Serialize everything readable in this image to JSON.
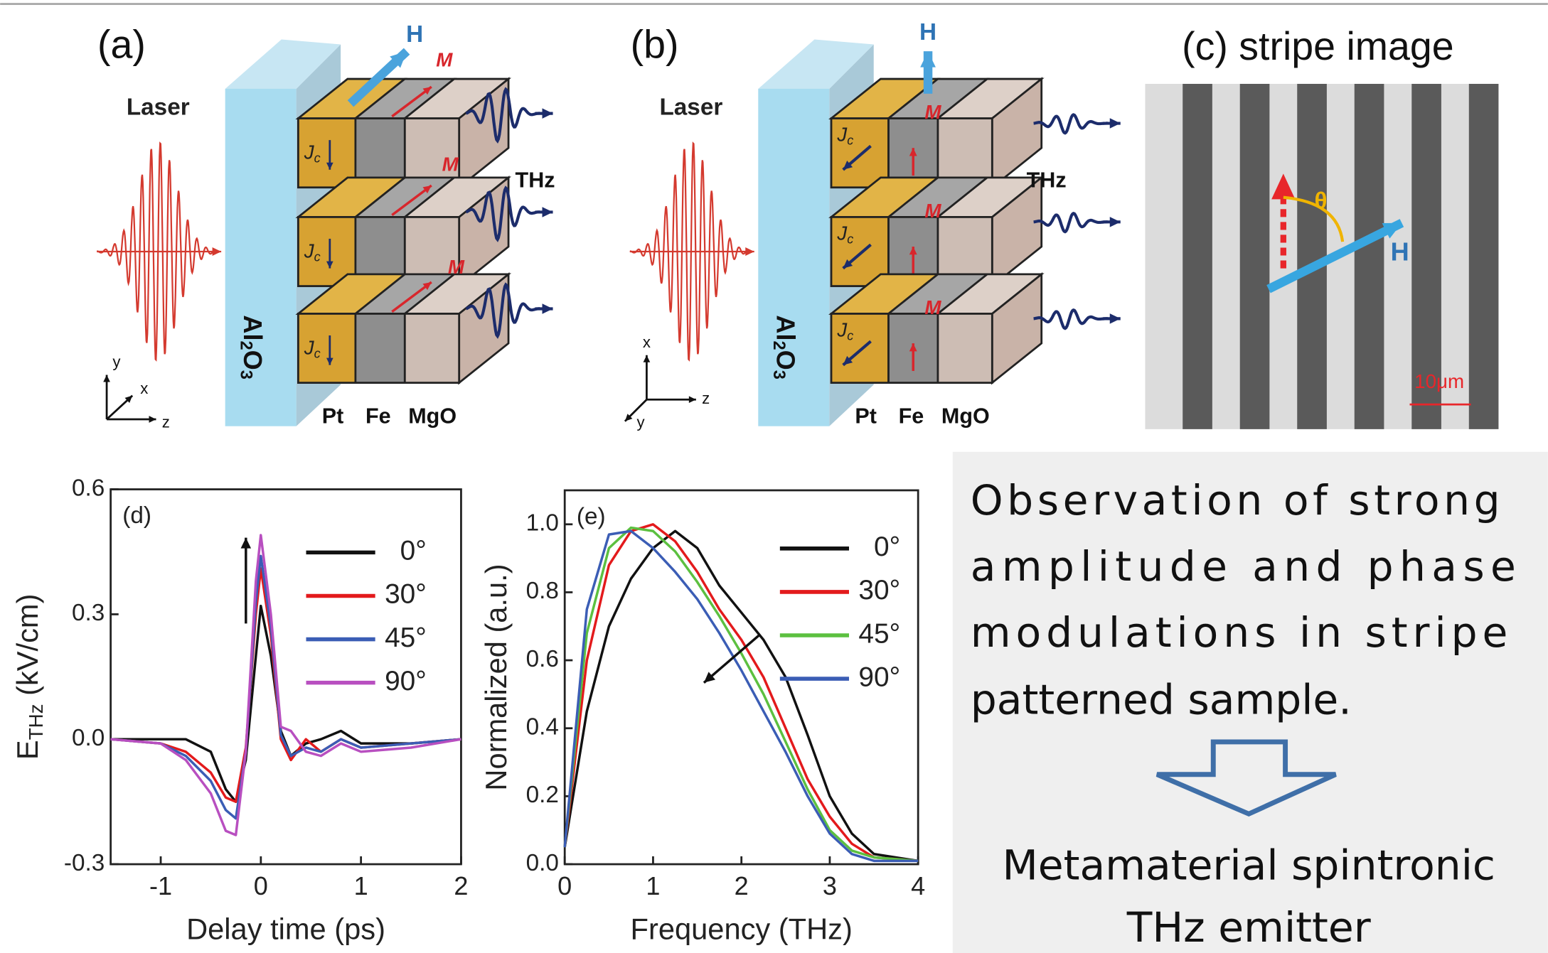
{
  "panel_a": {
    "label": "(a)",
    "laser": "Laser",
    "field": "H",
    "magnetization": "M",
    "thz": "THz",
    "substrate": "Al",
    "substrate_sub1": "2",
    "substrate_o": "O",
    "substrate_sub2": "3",
    "current": "J",
    "current_sub": "c",
    "layers": [
      "Pt",
      "Fe",
      "MgO"
    ],
    "axes": [
      "y",
      "x",
      "z"
    ]
  },
  "panel_b": {
    "label": "(b)",
    "laser": "Laser",
    "field": "H",
    "magnetization": "M",
    "thz": "THz",
    "substrate": "Al",
    "substrate_sub1": "2",
    "substrate_o": "O",
    "substrate_sub2": "3",
    "current": "J",
    "current_sub": "c",
    "layers": [
      "Pt",
      "Fe",
      "MgO"
    ],
    "axes": [
      "x",
      "y",
      "z"
    ]
  },
  "panel_c": {
    "title": "(c) stripe image",
    "angle": "θ",
    "field": "H",
    "scale": "10μm"
  },
  "chart_data": [
    {
      "type": "line",
      "panel_label": "(d)",
      "x_label": "Delay time (ps)",
      "y_label": "E",
      "y_label_sub": "THz",
      "y_label_unit": " (kV/cm)",
      "x": [
        -1.5,
        -1,
        -0.75,
        -0.5,
        -0.35,
        -0.25,
        -0.15,
        -0.05,
        0,
        0.1,
        0.2,
        0.3,
        0.45,
        0.6,
        0.8,
        1,
        1.5,
        2
      ],
      "xlim": [
        -1.5,
        2
      ],
      "xticks": [
        -1,
        0,
        1,
        2
      ],
      "ylim": [
        -0.3,
        0.6
      ],
      "yticks": [
        -0.3,
        {
          "value": 0,
          "label": "0.0"
        },
        0.3,
        0.6
      ],
      "series": [
        {
          "name": "0°",
          "color": "#111111",
          "values": [
            0,
            0,
            0,
            -0.03,
            -0.12,
            -0.15,
            -0.05,
            0.2,
            0.32,
            0.2,
            0.02,
            -0.04,
            -0.01,
            0,
            0.02,
            -0.01,
            -0.01,
            0
          ]
        },
        {
          "name": "30°",
          "color": "#e31a1c",
          "values": [
            0,
            -0.01,
            -0.03,
            -0.08,
            -0.14,
            -0.15,
            -0.02,
            0.3,
            0.41,
            0.25,
            0,
            -0.05,
            0,
            -0.03,
            0,
            -0.02,
            -0.01,
            0
          ]
        },
        {
          "name": "45°",
          "color": "#3b5db5",
          "values": [
            0,
            -0.01,
            -0.04,
            -0.1,
            -0.17,
            -0.19,
            -0.03,
            0.33,
            0.44,
            0.27,
            0.01,
            -0.04,
            -0.02,
            -0.03,
            0,
            -0.02,
            -0.01,
            0
          ]
        },
        {
          "name": "90°",
          "color": "#b84fc0",
          "values": [
            0,
            -0.01,
            -0.05,
            -0.13,
            -0.22,
            -0.23,
            -0.03,
            0.38,
            0.49,
            0.3,
            0.03,
            0.02,
            -0.03,
            -0.04,
            -0.01,
            -0.03,
            -0.02,
            0
          ]
        }
      ]
    },
    {
      "type": "line",
      "panel_label": "(e)",
      "x_label": "Frequency (THz)",
      "y_label": "Normalized (a.u.)",
      "x": [
        0,
        0.25,
        0.5,
        0.75,
        1,
        1.25,
        1.5,
        1.75,
        2,
        2.25,
        2.5,
        2.75,
        3,
        3.25,
        3.5,
        4
      ],
      "xlim": [
        0,
        4
      ],
      "xticks": [
        0,
        1,
        2,
        3,
        4
      ],
      "ylim": [
        0,
        1.1
      ],
      "yticks": [
        {
          "value": 0,
          "label": "0.0"
        },
        0.2,
        0.4,
        0.6,
        0.8,
        {
          "value": 1,
          "label": "1.0"
        }
      ],
      "series": [
        {
          "name": "0°",
          "color": "#111111",
          "values": [
            0.05,
            0.45,
            0.7,
            0.84,
            0.93,
            0.98,
            0.93,
            0.82,
            0.74,
            0.66,
            0.55,
            0.38,
            0.2,
            0.09,
            0.03,
            0.01
          ]
        },
        {
          "name": "30°",
          "color": "#e31a1c",
          "values": [
            0.05,
            0.6,
            0.88,
            0.98,
            1.0,
            0.95,
            0.86,
            0.75,
            0.66,
            0.55,
            0.4,
            0.25,
            0.14,
            0.06,
            0.02,
            0.01
          ]
        },
        {
          "name": "45°",
          "color": "#5cc040",
          "values": [
            0.05,
            0.68,
            0.93,
            0.99,
            0.98,
            0.92,
            0.83,
            0.73,
            0.62,
            0.5,
            0.36,
            0.22,
            0.1,
            0.04,
            0.02,
            0.01
          ]
        },
        {
          "name": "90°",
          "color": "#3b5db5",
          "values": [
            0.05,
            0.75,
            0.97,
            0.98,
            0.93,
            0.86,
            0.78,
            0.68,
            0.57,
            0.45,
            0.33,
            0.2,
            0.09,
            0.03,
            0.01,
            0.01
          ]
        }
      ]
    }
  ],
  "text_box": {
    "lines": [
      "Observation of strong",
      "amplitude and phase",
      "modulations in stripe",
      "patterned sample."
    ],
    "conclusion": [
      "Metamaterial spintronic",
      "THz emitter"
    ]
  }
}
